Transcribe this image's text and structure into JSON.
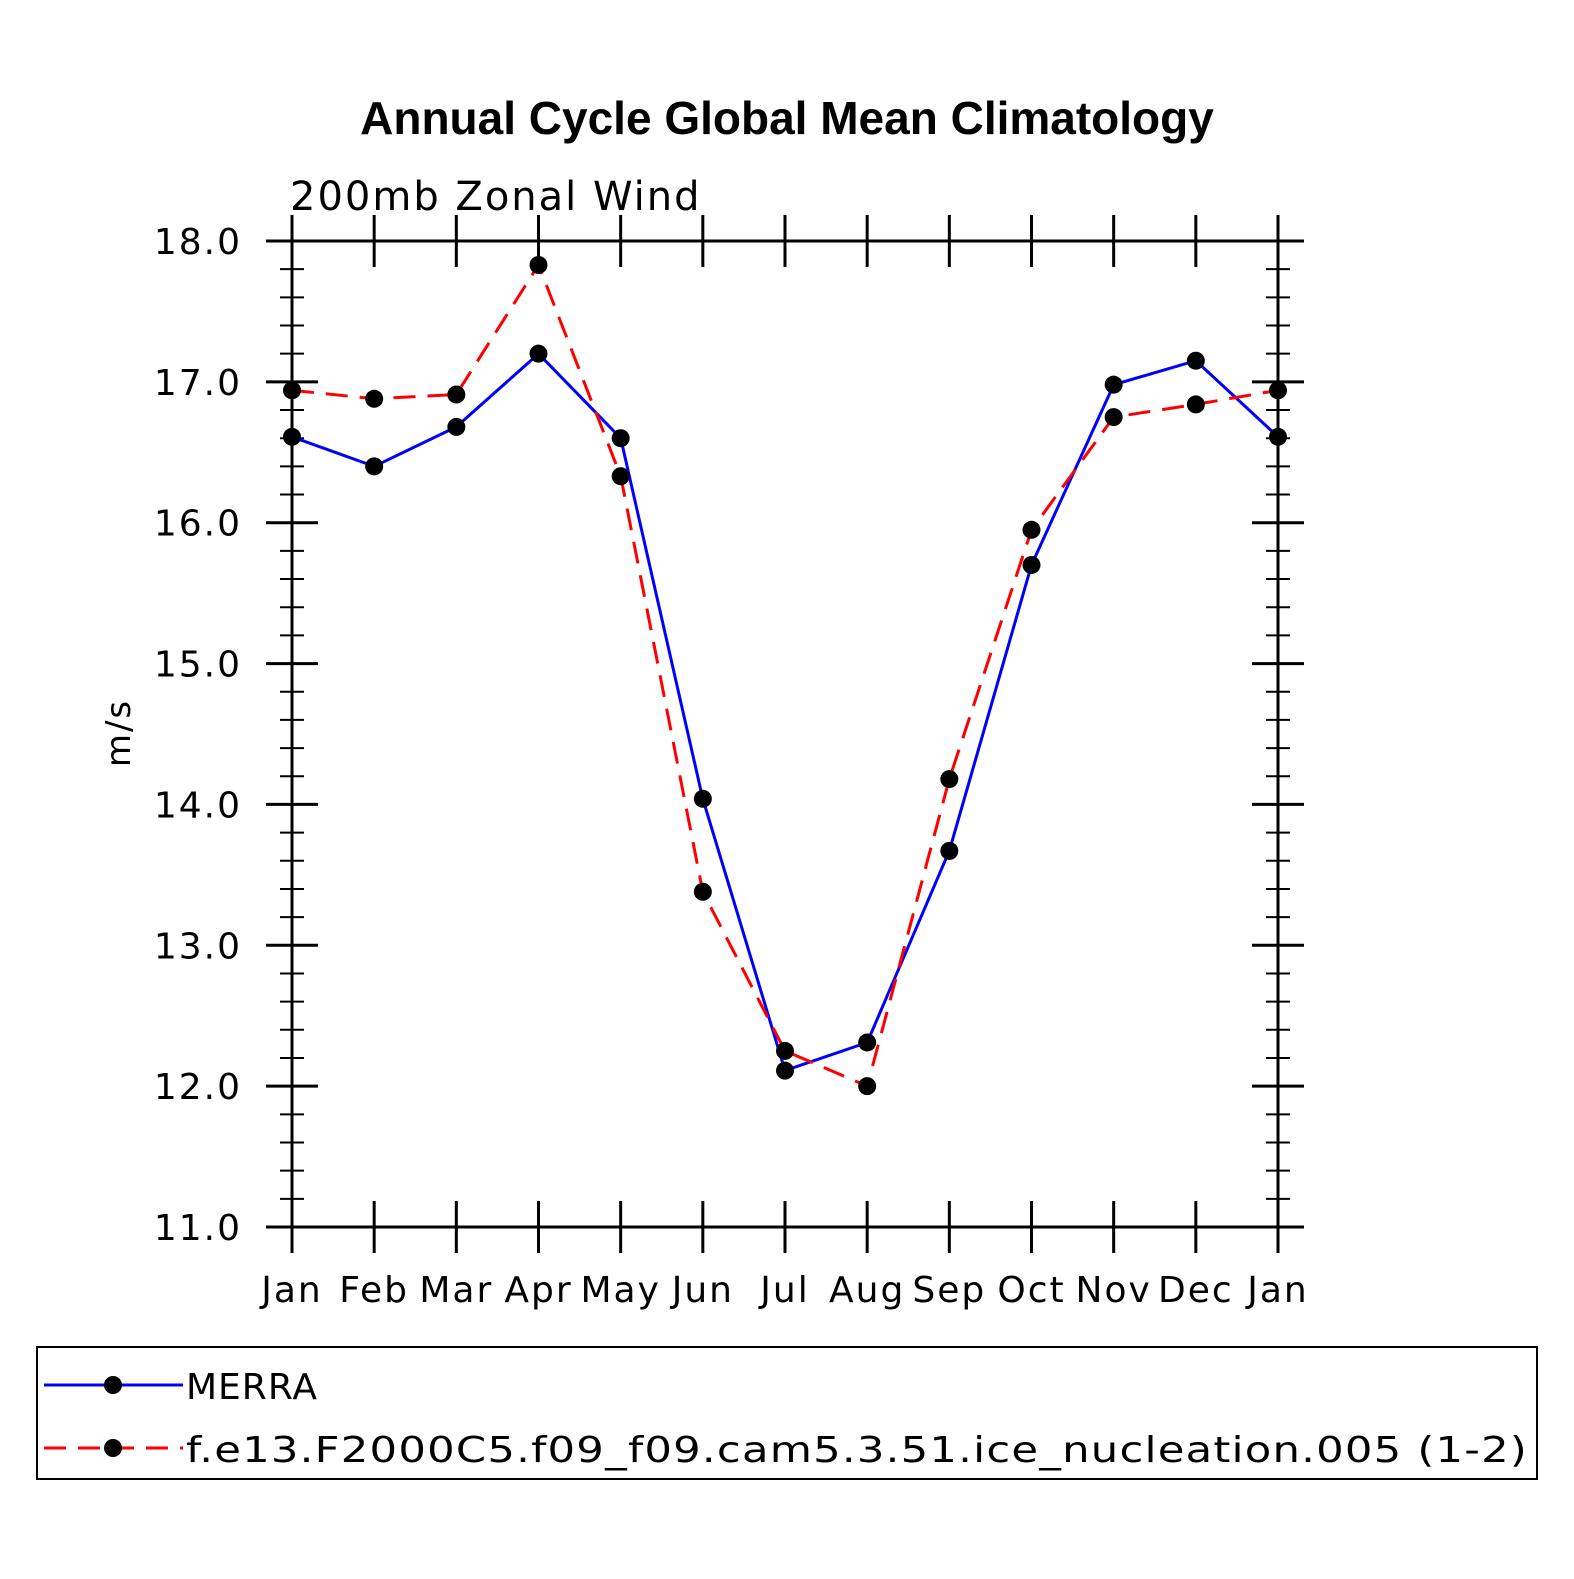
{
  "chart_data": {
    "type": "line",
    "title": "Annual Cycle Global Mean Climatology",
    "subtitle": "200mb Zonal Wind",
    "xlabel": "",
    "ylabel": "m/s",
    "categories": [
      "Jan",
      "Feb",
      "Mar",
      "Apr",
      "May",
      "Jun",
      "Jul",
      "Aug",
      "Sep",
      "Oct",
      "Nov",
      "Dec",
      "Jan"
    ],
    "ylim": [
      11.0,
      18.0
    ],
    "yticks": [
      "11.0",
      "12.0",
      "13.0",
      "14.0",
      "15.0",
      "16.0",
      "17.0",
      "18.0"
    ],
    "grid": false,
    "legend_position": "bottom",
    "series": [
      {
        "name": "MERRA",
        "color": "#0000ff",
        "style": "solid",
        "marker": "filled-circle",
        "values": [
          16.61,
          16.4,
          16.68,
          17.2,
          16.6,
          14.04,
          12.11,
          12.31,
          13.67,
          15.7,
          16.98,
          17.15,
          16.61
        ]
      },
      {
        "name": "f.e13.F2000C5.f09_f09.cam5.3.51.ice_nucleation.005 (1-2)",
        "color": "#ff0000",
        "style": "dashed",
        "marker": "filled-circle",
        "values": [
          16.94,
          16.88,
          16.91,
          17.83,
          16.33,
          13.38,
          12.25,
          12.0,
          14.18,
          15.95,
          16.75,
          16.84,
          16.94
        ]
      }
    ]
  }
}
